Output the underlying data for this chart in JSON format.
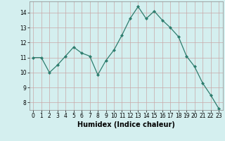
{
  "x": [
    0,
    1,
    2,
    3,
    4,
    5,
    6,
    7,
    8,
    9,
    10,
    11,
    12,
    13,
    14,
    15,
    16,
    17,
    18,
    19,
    20,
    21,
    22,
    23
  ],
  "y": [
    11.0,
    11.0,
    10.0,
    10.5,
    11.1,
    11.7,
    11.3,
    11.1,
    9.85,
    10.8,
    11.5,
    12.5,
    13.6,
    14.4,
    13.6,
    14.1,
    13.5,
    13.0,
    12.4,
    11.1,
    10.4,
    9.3,
    8.5,
    7.6
  ],
  "line_color": "#2e7d6e",
  "marker": "D",
  "marker_size": 2,
  "bg_color": "#d4efef",
  "grid_color": "#c8a8a8",
  "xlabel": "Humidex (Indice chaleur)",
  "xlim": [
    -0.5,
    23.5
  ],
  "ylim": [
    7.5,
    14.75
  ],
  "yticks": [
    8,
    9,
    10,
    11,
    12,
    13,
    14
  ],
  "xticks": [
    0,
    1,
    2,
    3,
    4,
    5,
    6,
    7,
    8,
    9,
    10,
    11,
    12,
    13,
    14,
    15,
    16,
    17,
    18,
    19,
    20,
    21,
    22,
    23
  ],
  "tick_fontsize": 5.5,
  "xlabel_fontsize": 7
}
